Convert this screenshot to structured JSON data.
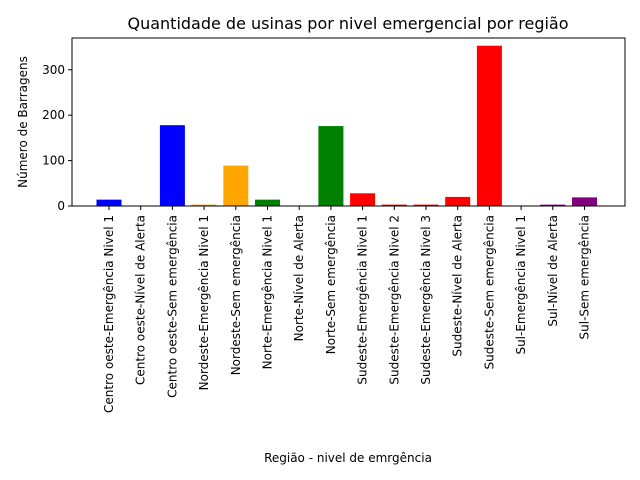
{
  "chart_data": {
    "type": "bar",
    "title": "Quantidade de usinas por nivel emergencial por região",
    "xlabel": "Região - nivel de emrgência",
    "ylabel": "Número de Barragens",
    "ylim": [
      0,
      370
    ],
    "yticks": [
      0,
      100,
      200,
      300
    ],
    "grid": false,
    "categories": [
      "Centro oeste-Emergência Nivel 1",
      "Centro oeste-Nível de Alerta",
      "Centro oeste-Sem emergência",
      "Nordeste-Emergência Nivel 1",
      "Nordeste-Sem emergência",
      "Norte-Emergência Nivel 1",
      "Norte-Nível de Alerta",
      "Norte-Sem emergência",
      "Sudeste-Emergência Nivel 1",
      "Sudeste-Emergência Nivel 2",
      "Sudeste-Emergência Nivel 3",
      "Sudeste-Nível de Alerta",
      "Sudeste-Sem emergência",
      "Sul-Emergência Nivel 1",
      "Sul-Nível de Alerta",
      "Sul-Sem emergência"
    ],
    "values": [
      14,
      1,
      178,
      3,
      89,
      14,
      1,
      176,
      28,
      3,
      3,
      20,
      353,
      1,
      3,
      19
    ],
    "colors": [
      "#0000ff",
      "#0000ff",
      "#0000ff",
      "#ffa500",
      "#ffa500",
      "#008000",
      "#008000",
      "#008000",
      "#ff0000",
      "#ff0000",
      "#ff0000",
      "#ff0000",
      "#ff0000",
      "#800080",
      "#800080",
      "#800080"
    ]
  }
}
